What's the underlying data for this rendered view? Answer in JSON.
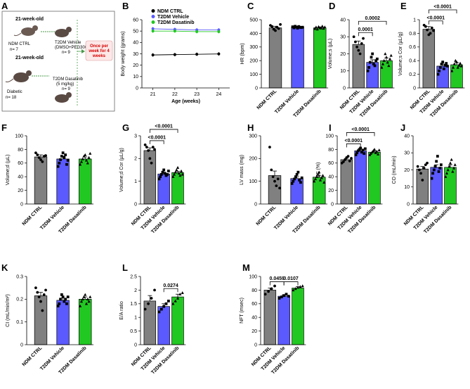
{
  "colors": {
    "ndm": "#808080",
    "vehicle": "#5a5aff",
    "dasatinib": "#22c822",
    "callout_bg": "#fde8e8",
    "callout_text": "#d40000"
  },
  "schematic": {
    "label": "A",
    "group1_age": "21-week-old",
    "ndm_name": "NDM CTRL",
    "ndm_n": "n= 7",
    "group2_age": "21-week-old",
    "diabetic_name": "Diabetic",
    "diabetic_n": "n= 18",
    "vehicle_title": "T2DM Vehicle",
    "vehicle_detail": "(DMSO+PEG300)",
    "vehicle_n": "n= 9",
    "dasatinib_title": "T2DM Dasatinib",
    "dasatinib_detail": "(5 mg/kg)",
    "dasatinib_n": "n= 9",
    "callout_line1": "Once per",
    "callout_line2": "week for 4",
    "callout_line3": "weeks"
  },
  "chart_data": [
    {
      "id": "B",
      "type": "line",
      "title": "",
      "xlabel": "Age (weeks)",
      "ylabel": "Body weight (grams)",
      "x": [
        21,
        22,
        23,
        24
      ],
      "xlim": [
        20.5,
        24.5
      ],
      "ylim": [
        0,
        60
      ],
      "yticks": [
        0,
        10,
        20,
        30,
        40,
        50,
        60
      ],
      "legend": [
        "NDM CTRL",
        "T2DM Vehicle",
        "T2DM Dasatinib"
      ],
      "legend_position": "top",
      "series": [
        {
          "name": "NDM CTRL",
          "values": [
            29,
            29.3,
            29.6,
            29.9
          ]
        },
        {
          "name": "T2DM Vehicle",
          "values": [
            52,
            51.5,
            51,
            51
          ]
        },
        {
          "name": "T2DM Dasatinib",
          "values": [
            50,
            50,
            49.5,
            49.5
          ]
        }
      ]
    },
    {
      "id": "C",
      "type": "bar",
      "ylabel": "HR (bpm)",
      "ylim": [
        0,
        500
      ],
      "yticks": [
        0,
        100,
        200,
        300,
        400,
        500
      ],
      "categories": [
        "NDM CTRL",
        "T2DM Vehicle",
        "T2DM Dasatinib"
      ],
      "values": [
        440,
        445,
        440
      ],
      "errors": [
        12,
        5,
        7
      ],
      "points": [
        [
          458,
          450,
          430,
          420,
          445,
          435,
          465
        ],
        [
          448,
          440,
          452,
          446,
          438,
          450,
          444,
          442,
          445
        ],
        [
          435,
          445,
          430,
          448,
          440,
          438,
          452,
          436,
          446
        ]
      ],
      "sig": []
    },
    {
      "id": "D",
      "type": "bar",
      "ylabel": "Volume;s (µL)",
      "ylim": [
        0,
        40
      ],
      "yticks": [
        0,
        10,
        20,
        30,
        40
      ],
      "categories": [
        "NDM CTRL",
        "T2DM Vehicle",
        "T2DM Dasatinib"
      ],
      "values": [
        25.5,
        15,
        16
      ],
      "errors": [
        2,
        1.5,
        1.5
      ],
      "points": [
        [
          30,
          27,
          24,
          22,
          20,
          26,
          29
        ],
        [
          10,
          12,
          15,
          18,
          20,
          14,
          13,
          16,
          17
        ],
        [
          12,
          14,
          16,
          20,
          18,
          15,
          13,
          17,
          19
        ]
      ],
      "sig": [
        {
          "a": 0,
          "b": 1,
          "text": "0.0001"
        },
        {
          "a": 0,
          "b": 2,
          "text": "0.0002"
        }
      ]
    },
    {
      "id": "E",
      "type": "bar",
      "ylabel": "Volume;s Cor (µL/g)",
      "ylim": [
        0,
        1.0
      ],
      "yticks": [
        0,
        0.2,
        0.4,
        0.6,
        0.8,
        1.0
      ],
      "categories": [
        "NDM CTRL",
        "T2DM Vehicle",
        "T2DM Dasatinib"
      ],
      "values": [
        0.86,
        0.32,
        0.34
      ],
      "errors": [
        0.04,
        0.03,
        0.03
      ],
      "points": [
        [
          0.92,
          0.9,
          0.85,
          0.78,
          0.8,
          0.88,
          0.84
        ],
        [
          0.2,
          0.25,
          0.3,
          0.35,
          0.38,
          0.28,
          0.33,
          0.36,
          0.32
        ],
        [
          0.25,
          0.3,
          0.35,
          0.4,
          0.38,
          0.3,
          0.33,
          0.36,
          0.32
        ]
      ],
      "sig": [
        {
          "a": 0,
          "b": 1,
          "text": "<0.0001"
        },
        {
          "a": 0,
          "b": 2,
          "text": "<0.0001"
        }
      ]
    },
    {
      "id": "F",
      "type": "bar",
      "ylabel": "Volume;d (µL)",
      "ylim": [
        0,
        100
      ],
      "yticks": [
        0,
        20,
        40,
        60,
        80,
        100
      ],
      "categories": [
        "NDM CTRL",
        "T2DM Vehicle",
        "T2DM Dasatinib"
      ],
      "values": [
        69,
        66,
        66
      ],
      "errors": [
        3,
        4,
        3
      ],
      "points": [
        [
          75,
          72,
          68,
          65,
          62,
          70,
          71
        ],
        [
          55,
          60,
          65,
          70,
          75,
          68,
          72,
          58,
          64
        ],
        [
          58,
          62,
          66,
          70,
          72,
          64,
          60,
          68,
          74
        ]
      ],
      "sig": []
    },
    {
      "id": "G",
      "type": "bar",
      "ylabel": "Volume;d Cor (µL/g)",
      "ylim": [
        0,
        3
      ],
      "yticks": [
        0,
        1,
        2,
        3
      ],
      "categories": [
        "NDM CTRL",
        "T2DM Vehicle",
        "T2DM Dasatinib"
      ],
      "values": [
        2.35,
        1.32,
        1.38
      ],
      "errors": [
        0.12,
        0.06,
        0.06
      ],
      "points": [
        [
          2.6,
          2.5,
          2.35,
          2.0,
          1.8,
          2.5,
          2.4
        ],
        [
          1.1,
          1.2,
          1.3,
          1.4,
          1.5,
          1.35,
          1.25,
          1.3,
          1.45
        ],
        [
          1.2,
          1.3,
          1.4,
          1.5,
          1.6,
          1.35,
          1.25,
          1.45,
          1.3
        ]
      ],
      "sig": [
        {
          "a": 0,
          "b": 1,
          "text": "<0.0001"
        },
        {
          "a": 0,
          "b": 2,
          "text": "<0.0001"
        }
      ]
    },
    {
      "id": "H",
      "type": "bar",
      "ylabel": "LV mass (mg)",
      "ylim": [
        0,
        300
      ],
      "yticks": [
        0,
        100,
        200,
        300
      ],
      "categories": [
        "NDM CTRL",
        "T2DM Vehicle",
        "T2DM Dasatinib"
      ],
      "values": [
        125,
        112,
        118
      ],
      "errors": [
        20,
        8,
        8
      ],
      "points": [
        [
          250,
          150,
          120,
          100,
          80,
          110,
          70
        ],
        [
          90,
          100,
          110,
          120,
          130,
          140,
          105,
          95,
          115
        ],
        [
          100,
          110,
          120,
          130,
          140,
          105,
          115,
          125,
          95
        ]
      ],
      "sig": []
    },
    {
      "id": "I",
      "type": "bar",
      "ylabel": "EF (%)",
      "ylim": [
        0,
        100
      ],
      "yticks": [
        0,
        20,
        40,
        60,
        80,
        100
      ],
      "categories": [
        "NDM CTRL",
        "T2DM Vehicle",
        "T2DM Dasatinib"
      ],
      "values": [
        65,
        78,
        76
      ],
      "errors": [
        2,
        2,
        1.5
      ],
      "points": [
        [
          60,
          62,
          65,
          68,
          70,
          63,
          67
        ],
        [
          72,
          75,
          78,
          80,
          82,
          76,
          79,
          74,
          81
        ],
        [
          72,
          74,
          76,
          78,
          80,
          75,
          77,
          73,
          79
        ]
      ],
      "sig": [
        {
          "a": 0,
          "b": 1,
          "text": "<0.0001"
        },
        {
          "a": 0,
          "b": 2,
          "text": "<0.0001"
        }
      ]
    },
    {
      "id": "J",
      "type": "bar",
      "ylabel": "CO (mL/min)",
      "ylim": [
        0,
        40
      ],
      "yticks": [
        0,
        10,
        20,
        30,
        40
      ],
      "categories": [
        "NDM CTRL",
        "T2DM Vehicle",
        "T2DM Dasatinib"
      ],
      "values": [
        20.5,
        21.5,
        21.5
      ],
      "errors": [
        1.5,
        1.5,
        1.5
      ],
      "points": [
        [
          22,
          20,
          18,
          14,
          21,
          23,
          24
        ],
        [
          15,
          18,
          20,
          22,
          25,
          28,
          19,
          21,
          23
        ],
        [
          16,
          18,
          20,
          22,
          24,
          26,
          19,
          21,
          23
        ]
      ],
      "sig": []
    },
    {
      "id": "K",
      "type": "bar",
      "ylabel": "CI (mL/min/m²)",
      "ylim": [
        0,
        0.3
      ],
      "yticks": [
        0,
        0.1,
        0.2,
        0.3
      ],
      "categories": [
        "NDM CTRL",
        "T2DM Vehicle",
        "T2DM Dasatinib"
      ],
      "values": [
        0.215,
        0.195,
        0.2
      ],
      "errors": [
        0.015,
        0.01,
        0.01
      ],
      "points": [
        [
          0.25,
          0.23,
          0.21,
          0.19,
          0.15,
          0.22,
          0.24
        ],
        [
          0.17,
          0.18,
          0.2,
          0.22,
          0.21,
          0.19,
          0.2,
          0.18,
          0.21
        ],
        [
          0.17,
          0.19,
          0.2,
          0.21,
          0.22,
          0.18,
          0.2,
          0.19,
          0.21
        ]
      ],
      "sig": []
    },
    {
      "id": "L",
      "type": "bar",
      "ylabel": "E/A ratio",
      "ylim": [
        0,
        2.5
      ],
      "yticks": [
        0,
        0.5,
        1.0,
        1.5,
        2.0,
        2.5
      ],
      "categories": [
        "NDM CTRL",
        "T2DM Vehicle",
        "T2DM Dasatinib"
      ],
      "values": [
        1.6,
        1.4,
        1.75
      ],
      "errors": [
        0.2,
        0.1,
        0.1
      ],
      "points": [
        [
          1.3,
          1.5,
          1.7,
          2.0
        ],
        [
          1.2,
          1.3,
          1.4,
          1.5,
          1.6
        ],
        [
          1.5,
          1.6,
          1.7,
          1.85,
          1.9
        ]
      ],
      "sig": [
        {
          "a": 1,
          "b": 2,
          "text": "0.0274"
        }
      ]
    },
    {
      "id": "M",
      "type": "bar",
      "ylabel": "NFT (msec)",
      "ylim": [
        0,
        100
      ],
      "yticks": [
        0,
        20,
        40,
        60,
        80,
        100
      ],
      "categories": [
        "NDM CTRL",
        "T2DM Vehicle",
        "T2DM Dasatinib"
      ],
      "values": [
        80,
        71,
        83
      ],
      "errors": [
        3,
        2,
        2
      ],
      "points": [
        [
          74,
          78,
          82,
          86
        ],
        [
          68,
          70,
          72,
          74,
          71
        ],
        [
          80,
          82,
          84,
          85,
          86
        ]
      ],
      "sig": [
        {
          "a": 0,
          "b": 1,
          "text": "0.0459"
        },
        {
          "a": 1,
          "b": 2,
          "text": "0.0107"
        }
      ]
    }
  ]
}
